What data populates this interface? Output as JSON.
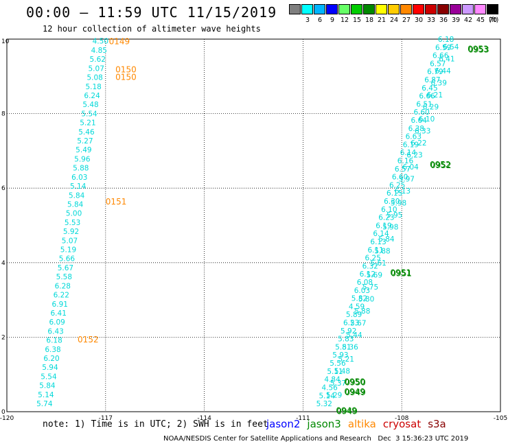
{
  "title": "00:00 – 11:59 UTC 11/15/2019",
  "subtitle": "12 hour collection of altimeter wave heights",
  "colorbar": {
    "colors": [
      "#7f7f7f",
      "#00ffff",
      "#00b4ff",
      "#0000ff",
      "#66ff66",
      "#00cc00",
      "#008800",
      "#ffff00",
      "#ffcc00",
      "#ff8800",
      "#ff0000",
      "#cc0000",
      "#880000",
      "#990099",
      "#cc99ff",
      "#ff88ff",
      "#000000"
    ],
    "labels": [
      "3",
      "6",
      "9",
      "12",
      "15",
      "18",
      "21",
      "24",
      "27",
      "30",
      "33",
      "36",
      "39",
      "42",
      "45",
      "70"
    ],
    "unit": "(ft)"
  },
  "note": "note: 1) Time is in UTC; 2) SWH is in feet",
  "legend": [
    {
      "label": "jason2",
      "color": "#0000ff"
    },
    {
      "label": "jason3",
      "color": "#008800"
    },
    {
      "label": "altika",
      "color": "#ff8800"
    },
    {
      "label": "cryosat",
      "color": "#cc0000"
    },
    {
      "label": "s3a",
      "color": "#880000"
    }
  ],
  "credit": "NOAA/NESDIS Center for Satellite Applications and Research   Dec  3 15:36:23 UTC 2019",
  "chart_data": {
    "type": "scatter",
    "xlim": [
      -120,
      -105
    ],
    "ylim": [
      0,
      10
    ],
    "xticks": [
      "-120",
      "-117",
      "-114",
      "-111",
      "-108",
      "-105"
    ],
    "yticks": [
      "0",
      "2",
      "4",
      "6",
      "8",
      "10"
    ],
    "grid": true,
    "colors": {
      "swh": "#00d8d8",
      "jason3": "#008800",
      "altika": "#ff8800"
    },
    "jason2_track": {
      "x_start": -119.1,
      "x_end": -117.4,
      "y_start": 0.22,
      "y_end": 9.95,
      "values": [
        "4.50",
        "4.85",
        "5.62",
        "5.07",
        "5.08",
        "5.18",
        "6.24",
        "5.48",
        "5.54",
        "5.21",
        "5.46",
        "5.27",
        "5.49",
        "5.96",
        "5.88",
        "6.03",
        "5.14",
        "5.84",
        "5.84",
        "5.00",
        "5.53",
        "5.92",
        "5.07",
        "5.19",
        "5.66",
        "5.67",
        "5.58",
        "6.28",
        "6.22",
        "6.91",
        "6.41",
        "6.09",
        "6.43",
        "6.18",
        "6.38",
        "6.20",
        "5.94",
        "5.54",
        "5.84",
        "5.14",
        "5.74"
      ]
    },
    "jason3_track_a": {
      "x_start": -110.6,
      "x_end": -106.9,
      "y_start": 0.22,
      "y_end": 10.0,
      "values": [
        "6.18",
        "6.59",
        "6.66",
        "6.57",
        "6.79",
        "6.87",
        "6.45",
        "6.66",
        "6.51",
        "6.60",
        "6.64",
        "6.38",
        "6.63",
        "6.19",
        "6.14",
        "6.16",
        "6.57",
        "6.60",
        "6.25",
        "6.15",
        "6.30",
        "6.10",
        "6.23",
        "6.19",
        "6.14",
        "6.13",
        "6.11",
        "6.25",
        "6.32",
        "6.12",
        "6.08",
        "6.03",
        "5.82",
        "4.59",
        "5.89",
        "6.23",
        "5.92",
        "5.83",
        "5.81",
        "5.93",
        "5.56",
        "5.11",
        "4.84",
        "4.56",
        "5.14",
        "5.32"
      ]
    },
    "jason3_track_b": {
      "x_start": -110.3,
      "x_end": -106.75,
      "y_start": 0.45,
      "y_end": 9.8,
      "values": [
        "6.54",
        "6.41",
        "6.44",
        "6.39",
        "6.21",
        "6.29",
        "6.10",
        "6.33",
        "6.22",
        "6.23",
        "6.04",
        "5.97",
        "6.13",
        "5.98",
        "5.95",
        "5.98",
        "5.84",
        "5.88",
        "5.61",
        "5.69",
        "5.75",
        "5.80",
        "5.88",
        "5.67",
        "5.44",
        "5.36",
        "5.21",
        "5.48",
        "5.37",
        "5.29"
      ]
    },
    "jason3_times": [
      {
        "label": "0953",
        "x": -106.0,
        "y": 9.75
      },
      {
        "label": "0952",
        "x": -107.15,
        "y": 6.65
      },
      {
        "label": "0951",
        "x": -108.35,
        "y": 3.75
      },
      {
        "label": "0950",
        "x": -109.75,
        "y": 0.82
      },
      {
        "label": "0949",
        "x": -109.75,
        "y": 0.55
      },
      {
        "label": "0949",
        "x": -110.0,
        "y": 0.05
      }
    ],
    "altika_times": [
      {
        "label": "0149",
        "x": -116.9,
        "y": 9.95
      },
      {
        "label": "0150",
        "x": -116.7,
        "y": 9.2
      },
      {
        "label": "0150",
        "x": -116.7,
        "y": 9.0
      },
      {
        "label": "0151",
        "x": -117.0,
        "y": 5.65
      },
      {
        "label": "0152",
        "x": -117.85,
        "y": 1.95
      }
    ]
  }
}
